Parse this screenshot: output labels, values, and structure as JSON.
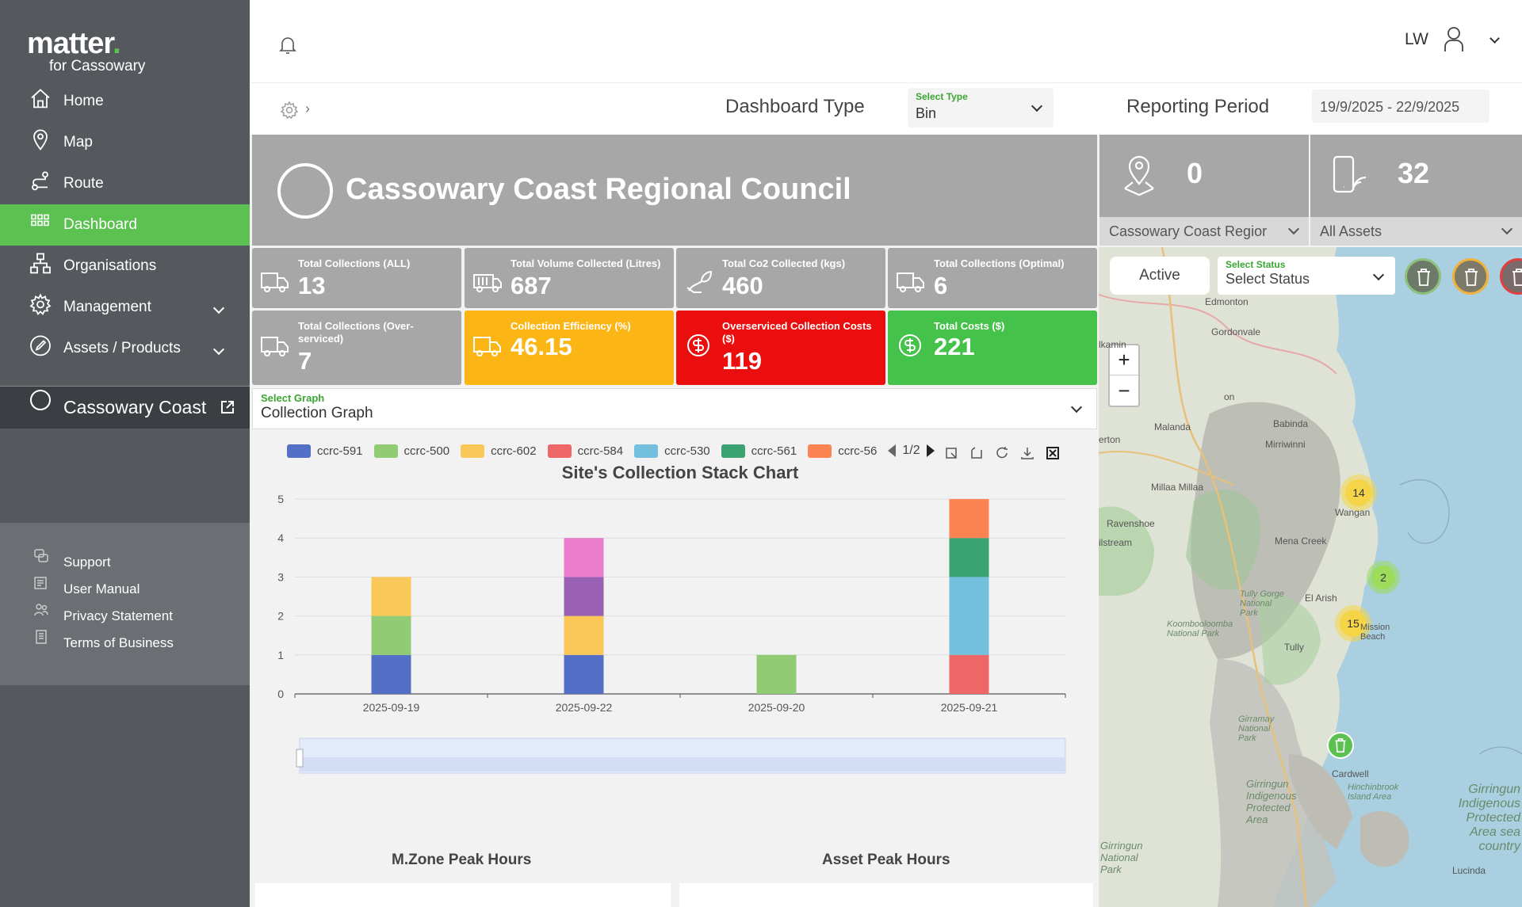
{
  "brand": {
    "logo": "matter",
    "sub": "for Cassowary"
  },
  "sidebar": {
    "items": [
      {
        "label": "Home",
        "icon": "home-icon"
      },
      {
        "label": "Map",
        "icon": "map-pin-icon"
      },
      {
        "label": "Route",
        "icon": "route-icon"
      },
      {
        "label": "Dashboard",
        "icon": "grid-icon",
        "active": true
      },
      {
        "label": "Organisations",
        "icon": "org-chart-icon"
      },
      {
        "label": "Management",
        "icon": "gear-icon",
        "expandable": true
      },
      {
        "label": "Assets / Products",
        "icon": "pencil-icon",
        "expandable": true
      }
    ],
    "org": "Cassowary Coast",
    "links": [
      {
        "label": "Support",
        "icon": "support-icon"
      },
      {
        "label": "User Manual",
        "icon": "manual-icon"
      },
      {
        "label": "Privacy Statement",
        "icon": "privacy-icon"
      },
      {
        "label": "Terms of Business",
        "icon": "document-icon"
      }
    ]
  },
  "topbar": {
    "user_initials": "LW"
  },
  "filters": {
    "dashboard_type_label": "Dashboard Type",
    "select_type_label": "Select Type",
    "select_type_value": "Bin",
    "reporting_period_label": "Reporting Period",
    "reporting_period_value": "19/9/2025 - 22/9/2025"
  },
  "council": {
    "title": "Cassowary Coast Regional Council"
  },
  "mini_cards": [
    {
      "value": "0",
      "select": "Cassowary Coast Regior",
      "icon": "location-person-icon"
    },
    {
      "value": "32",
      "select": "All Assets",
      "icon": "device-signal-icon"
    }
  ],
  "stats": [
    {
      "label": "Total Collections (ALL)",
      "value": "13",
      "icon": "truck-icon",
      "color": "#a7a7a7"
    },
    {
      "label": "Total Volume Collected (Litres)",
      "value": "687",
      "icon": "bin-truck-icon",
      "color": "#a7a7a7"
    },
    {
      "label": "Total Co2 Collected (kgs)",
      "value": "460",
      "icon": "leaf-hand-icon",
      "color": "#a7a7a7"
    },
    {
      "label": "Total Collections (Optimal)",
      "value": "6",
      "icon": "truck-icon",
      "color": "#a7a7a7"
    },
    {
      "label": "Total Collections (Over-serviced)",
      "value": "7",
      "icon": "truck-icon",
      "color": "#a7a7a7"
    },
    {
      "label": "Collection Efficiency (%)",
      "value": "46.15",
      "icon": "truck-icon",
      "color": "#fbb514"
    },
    {
      "label": "Overserviced Collection Costs ($)",
      "value": "119",
      "icon": "dollar-circle-icon",
      "color": "#eb0e0e"
    },
    {
      "label": "Total Costs ($)",
      "value": "221",
      "icon": "dollar-circle-icon",
      "color": "#44c24a"
    }
  ],
  "graph_select": {
    "label": "Select Graph",
    "value": "Collection Graph"
  },
  "legend_page": "1/2",
  "chart_data": {
    "type": "bar",
    "stacked": true,
    "title": "Site's Collection Stack Chart",
    "categories": [
      "2025-09-19",
      "2025-09-22",
      "2025-09-20",
      "2025-09-21"
    ],
    "ylim": [
      0,
      5
    ],
    "yticks": [
      "0",
      "1",
      "2",
      "3",
      "4",
      "5"
    ],
    "grid": true,
    "legend_position": "top",
    "series": [
      {
        "name": "ccrc-591",
        "color": "#5470c6",
        "values": [
          1,
          1,
          0,
          0
        ]
      },
      {
        "name": "ccrc-500",
        "color": "#91cc75",
        "values": [
          1,
          0,
          1,
          0
        ]
      },
      {
        "name": "ccrc-602",
        "color": "#fac858",
        "values": [
          1,
          1,
          0,
          0
        ]
      },
      {
        "name": "ccrc-584",
        "color": "#ee6666",
        "values": [
          0,
          0,
          0,
          1
        ]
      },
      {
        "name": "ccrc-530",
        "color": "#73c0de",
        "values": [
          0,
          0,
          0,
          2
        ]
      },
      {
        "name": "ccrc-561",
        "color": "#3ba272",
        "values": [
          0,
          0,
          0,
          1
        ]
      },
      {
        "name": "ccrc-56",
        "color": "#fc8452",
        "values": [
          0,
          0,
          0,
          1
        ]
      },
      {
        "color": "#9a60b4",
        "values": [
          0,
          1,
          0,
          0
        ]
      },
      {
        "color": "#ea7ccc",
        "values": [
          0,
          1,
          0,
          0
        ]
      }
    ]
  },
  "sections": {
    "zone_peak": "M.Zone Peak Hours",
    "asset_peak": "Asset Peak Hours"
  },
  "map": {
    "active_label": "Active",
    "status_label": "Select Status",
    "status_value": "Select Status",
    "zoom_in": "+",
    "zoom_out": "−",
    "clusters": [
      {
        "count": "14",
        "color": "#f5d547"
      },
      {
        "count": "2",
        "color": "#9ddc5a"
      },
      {
        "count": "15",
        "color": "#f5d547"
      }
    ],
    "places": [
      "Edmonton",
      "Gordonvale",
      "Malanda",
      "Babinda",
      "Mirriwinni",
      "Millaa Millaa",
      "Wangan",
      "Ravenshoe",
      "Mena Creek",
      "El Arish",
      "Tully",
      "Tully Gorge National Park",
      "Koombooloomba National Park",
      "Girramay National Park",
      "Girringun Indigenous Protected Area",
      "Girringun National Park",
      "Girringun Indigenous Protected Area sea country",
      "Cardwell",
      "Hinchinbrook Island Area",
      "Lucinda",
      "Mission Beach",
      "ilstream",
      "erton",
      "lkamin",
      "on"
    ]
  }
}
